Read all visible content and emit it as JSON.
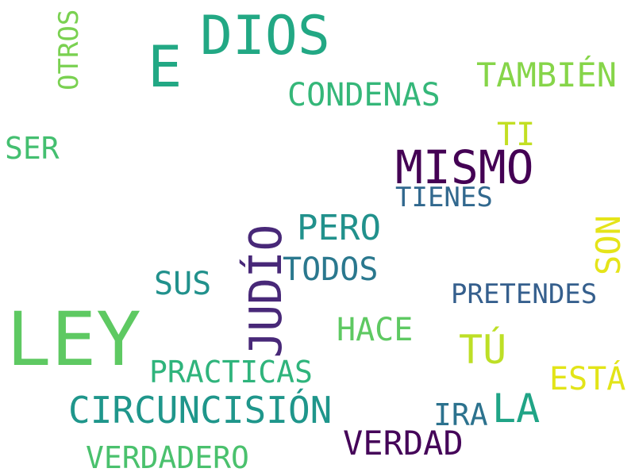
{
  "words": {
    "ley": {
      "text": "LEY",
      "color": "#5ec962"
    },
    "dios": {
      "text": "DIOS",
      "color": "#22a884"
    },
    "e": {
      "text": "E",
      "color": "#22a884"
    },
    "mismo": {
      "text": "MISMO",
      "color": "#440154"
    },
    "judio": {
      "text": "JUDÍO",
      "color": "#482878"
    },
    "tambien": {
      "text": "TAMBIÉN",
      "color": "#86d549"
    },
    "condenas": {
      "text": "CONDENAS",
      "color": "#35b779"
    },
    "otros": {
      "text": "OTROS",
      "color": "#7ad151"
    },
    "ser": {
      "text": "SER",
      "color": "#44bf70"
    },
    "ti": {
      "text": "TI",
      "color": "#c2df23"
    },
    "tienes": {
      "text": "TIENES",
      "color": "#31688e"
    },
    "pero": {
      "text": "PERO",
      "color": "#21918c"
    },
    "son": {
      "text": "SON",
      "color": "#e5e419"
    },
    "todos": {
      "text": "TODOS",
      "color": "#2a788e"
    },
    "sus": {
      "text": "SUS",
      "color": "#21918c"
    },
    "pretendes": {
      "text": "PRETENDES",
      "color": "#355f8d"
    },
    "hace": {
      "text": "HACE",
      "color": "#5ec962"
    },
    "tu": {
      "text": "TÚ",
      "color": "#bddf26"
    },
    "practicas": {
      "text": "PRACTICAS",
      "color": "#2fb47c"
    },
    "esta": {
      "text": "ESTÁ",
      "color": "#e2e418"
    },
    "circuncision": {
      "text": "CIRCUNCISIÓN",
      "color": "#1f968b"
    },
    "la": {
      "text": "LA",
      "color": "#20a486"
    },
    "ira": {
      "text": "IRA",
      "color": "#2c728e"
    },
    "verdad": {
      "text": "VERDAD",
      "color": "#450559"
    },
    "verdadero": {
      "text": "VERDADERO",
      "color": "#4ac16d"
    }
  }
}
